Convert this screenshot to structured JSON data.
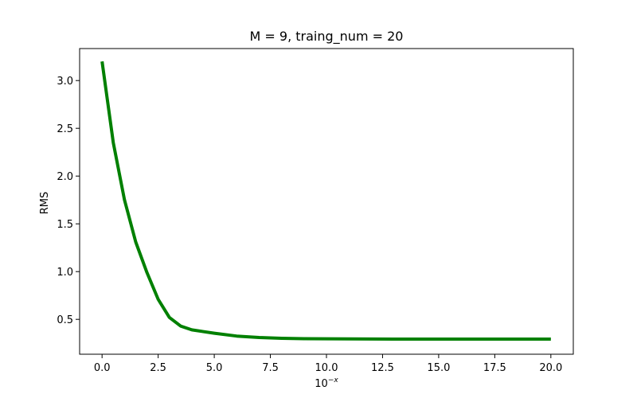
{
  "chart_data": {
    "type": "line",
    "title": "M = 9, traing_num = 20",
    "xlabel": "10",
    "xlabel_superscript": "−x",
    "ylabel": "RMS",
    "xlim": [
      -1.0,
      21.0
    ],
    "ylim": [
      0.135,
      3.335
    ],
    "x_ticks": [
      0.0,
      2.5,
      5.0,
      7.5,
      10.0,
      12.5,
      15.0,
      17.5,
      20.0
    ],
    "x_tick_labels": [
      "0.0",
      "2.5",
      "5.0",
      "7.5",
      "10.0",
      "12.5",
      "15.0",
      "17.5",
      "20.0"
    ],
    "y_ticks": [
      0.5,
      1.0,
      1.5,
      2.0,
      2.5,
      3.0
    ],
    "y_tick_labels": [
      "0.5",
      "1.0",
      "1.5",
      "2.0",
      "2.5",
      "3.0"
    ],
    "grid": false,
    "line_color": "#008000",
    "series": [
      {
        "x": [
          0,
          0.5,
          1,
          1.5,
          2,
          2.5,
          3,
          3.5,
          4,
          5,
          6,
          7,
          8,
          9,
          10,
          11,
          12,
          13,
          14,
          15,
          16,
          17,
          18,
          19,
          20
        ],
        "y": [
          3.2,
          2.35,
          1.75,
          1.31,
          0.99,
          0.71,
          0.52,
          0.43,
          0.39,
          0.355,
          0.325,
          0.31,
          0.302,
          0.298,
          0.296,
          0.295,
          0.294,
          0.293,
          0.293,
          0.293,
          0.293,
          0.293,
          0.293,
          0.293,
          0.293
        ]
      }
    ]
  }
}
